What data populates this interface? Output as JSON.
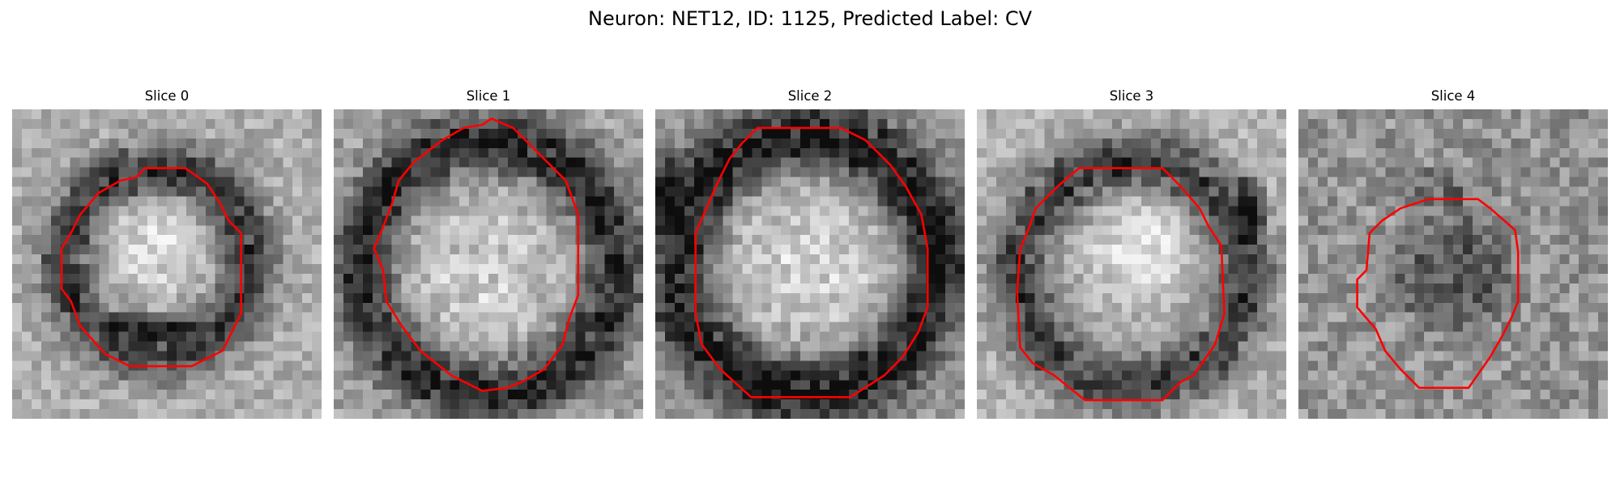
{
  "figure": {
    "title": "Neuron: NET12, ID: 1125, Predicted Label: CV"
  },
  "colors": {
    "contour": "#ff0000",
    "background": "#ffffff"
  },
  "panels": [
    {
      "title": "Slice 0"
    },
    {
      "title": "Slice 1"
    },
    {
      "title": "Slice 2"
    },
    {
      "title": "Slice 3"
    },
    {
      "title": "Slice 4"
    }
  ]
}
